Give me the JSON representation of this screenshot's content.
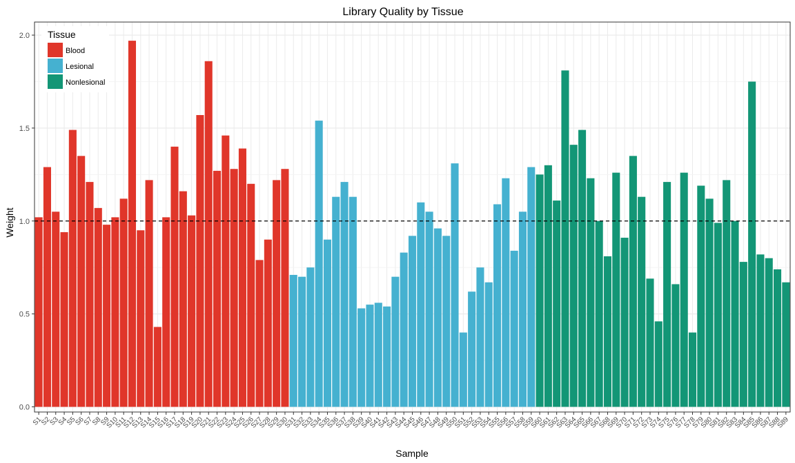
{
  "chart_data": {
    "type": "bar",
    "title": "Library Quality by Tissue",
    "xlabel": "Sample",
    "ylabel": "Weight",
    "ylim": [
      0,
      2.05
    ],
    "yticks": [
      0.0,
      0.5,
      1.0,
      1.5,
      2.0
    ],
    "ytick_labels": [
      "0.0",
      "0.5",
      "1.0",
      "1.5",
      "2.0"
    ],
    "reference_line": {
      "y": 1.0,
      "style": "dashed",
      "color": "#000000"
    },
    "grid": true,
    "legend": {
      "title": "Tissue",
      "placement": "top-left",
      "entries": [
        {
          "label": "Blood",
          "color": "#E0362A"
        },
        {
          "label": "Lesional",
          "color": "#45B1D0"
        },
        {
          "label": "Nonlesional",
          "color": "#139676"
        }
      ]
    },
    "categories": [
      "S1",
      "S2",
      "S3",
      "S4",
      "S5",
      "S6",
      "S7",
      "S8",
      "S9",
      "S10",
      "S11",
      "S12",
      "S13",
      "S14",
      "S15",
      "S16",
      "S17",
      "S18",
      "S19",
      "S20",
      "S21",
      "S22",
      "S23",
      "S24",
      "S25",
      "S26",
      "S27",
      "S28",
      "S29",
      "S30",
      "S31",
      "S32",
      "S33",
      "S34",
      "S35",
      "S36",
      "S37",
      "S38",
      "S39",
      "S40",
      "S41",
      "S42",
      "S43",
      "S44",
      "S45",
      "S46",
      "S47",
      "S48",
      "S49",
      "S50",
      "S51",
      "S52",
      "S53",
      "S54",
      "S55",
      "S56",
      "S57",
      "S58",
      "S59",
      "S60",
      "S61",
      "S62",
      "S63",
      "S64",
      "S65",
      "S66",
      "S67",
      "S68",
      "S69",
      "S70",
      "S71",
      "S72",
      "S73",
      "S74",
      "S75",
      "S76",
      "S77",
      "S78",
      "S79",
      "S80",
      "S81",
      "S82",
      "S83",
      "S84",
      "S85",
      "S86",
      "S87",
      "S88",
      "S89"
    ],
    "values": [
      1.02,
      1.29,
      1.05,
      0.94,
      1.49,
      1.35,
      1.21,
      1.07,
      0.98,
      1.02,
      1.12,
      1.97,
      0.95,
      1.22,
      0.43,
      1.02,
      1.4,
      1.16,
      1.03,
      1.57,
      1.86,
      1.27,
      1.46,
      1.28,
      1.39,
      1.2,
      0.79,
      0.9,
      1.22,
      1.28,
      0.71,
      0.7,
      0.75,
      1.54,
      0.9,
      1.13,
      1.21,
      1.13,
      0.53,
      0.55,
      0.56,
      0.54,
      0.7,
      0.83,
      0.92,
      1.1,
      1.05,
      0.96,
      0.92,
      1.31,
      0.4,
      0.62,
      0.75,
      0.67,
      1.09,
      1.23,
      0.84,
      1.05,
      1.29,
      1.25,
      1.3,
      1.11,
      1.81,
      1.41,
      1.49,
      1.23,
      1.0,
      0.81,
      1.26,
      0.91,
      1.35,
      1.13,
      0.69,
      0.46,
      1.21,
      0.66,
      1.26,
      0.4,
      1.19,
      1.12,
      0.99,
      1.22,
      1.0,
      0.78,
      1.75,
      0.82,
      0.8,
      0.74,
      0.67
    ],
    "tissue": [
      "Blood",
      "Blood",
      "Blood",
      "Blood",
      "Blood",
      "Blood",
      "Blood",
      "Blood",
      "Blood",
      "Blood",
      "Blood",
      "Blood",
      "Blood",
      "Blood",
      "Blood",
      "Blood",
      "Blood",
      "Blood",
      "Blood",
      "Blood",
      "Blood",
      "Blood",
      "Blood",
      "Blood",
      "Blood",
      "Blood",
      "Blood",
      "Blood",
      "Blood",
      "Blood",
      "Lesional",
      "Lesional",
      "Lesional",
      "Lesional",
      "Lesional",
      "Lesional",
      "Lesional",
      "Lesional",
      "Lesional",
      "Lesional",
      "Lesional",
      "Lesional",
      "Lesional",
      "Lesional",
      "Lesional",
      "Lesional",
      "Lesional",
      "Lesional",
      "Lesional",
      "Lesional",
      "Lesional",
      "Lesional",
      "Lesional",
      "Lesional",
      "Lesional",
      "Lesional",
      "Lesional",
      "Lesional",
      "Lesional",
      "Nonlesional",
      "Nonlesional",
      "Nonlesional",
      "Nonlesional",
      "Nonlesional",
      "Nonlesional",
      "Nonlesional",
      "Nonlesional",
      "Nonlesional",
      "Nonlesional",
      "Nonlesional",
      "Nonlesional",
      "Nonlesional",
      "Nonlesional",
      "Nonlesional",
      "Nonlesional",
      "Nonlesional",
      "Nonlesional",
      "Nonlesional",
      "Nonlesional",
      "Nonlesional",
      "Nonlesional",
      "Nonlesional",
      "Nonlesional",
      "Nonlesional",
      "Nonlesional",
      "Nonlesional",
      "Nonlesional",
      "Nonlesional",
      "Nonlesional"
    ]
  }
}
